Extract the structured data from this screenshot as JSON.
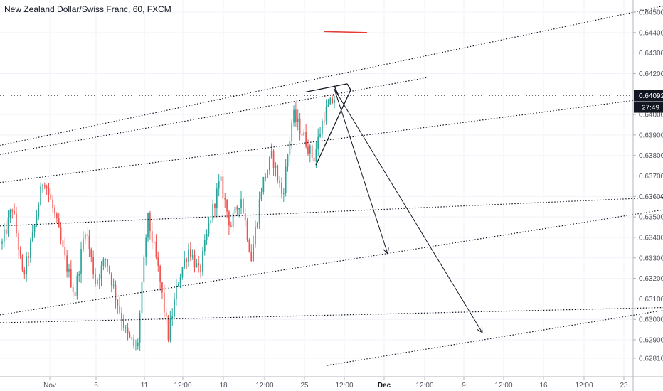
{
  "header": {
    "title": "New Zealand Dollar/Swiss Franc, 60, FXCM"
  },
  "colors": {
    "background": "#ffffff",
    "up": "#26a69a",
    "down": "#ef5350",
    "text": "#131722",
    "drawing": "#131722",
    "red_line": "#e53935"
  },
  "chart_data": {
    "type": "candlestick",
    "title": "New Zealand Dollar/Swiss Franc, 60, FXCM",
    "ylim": [
      0.6275,
      0.6455
    ],
    "y_ticks": [
      "0.64500",
      "0.64400",
      "0.64300",
      "0.64200",
      "0.64000",
      "0.63900",
      "0.63800",
      "0.63700",
      "0.63600",
      "0.63500",
      "0.63400",
      "0.63300",
      "0.63200",
      "0.63100",
      "0.63000",
      "0.62900",
      "0.62810"
    ],
    "x_ticks": [
      "Nov",
      "6",
      "11",
      "12:00",
      "18",
      "12:00",
      "25",
      "12:00",
      "Dec",
      "12:00",
      "9",
      "12:00",
      "16",
      "12:00",
      "23"
    ],
    "current_price": "0.64092",
    "countdown": "27:49",
    "anchors": [
      {
        "v": 0.6337
      },
      {
        "v": 0.6355
      },
      {
        "v": 0.632
      },
      {
        "v": 0.6342
      },
      {
        "v": 0.637
      },
      {
        "v": 0.6352
      },
      {
        "v": 0.633
      },
      {
        "v": 0.6312
      },
      {
        "v": 0.6345
      },
      {
        "v": 0.6318
      },
      {
        "v": 0.633
      },
      {
        "v": 0.631
      },
      {
        "v": 0.6292
      },
      {
        "v": 0.6285
      },
      {
        "v": 0.635
      },
      {
        "v": 0.6325
      },
      {
        "v": 0.6292
      },
      {
        "v": 0.632
      },
      {
        "v": 0.6335
      },
      {
        "v": 0.6322
      },
      {
        "v": 0.6348
      },
      {
        "v": 0.6368
      },
      {
        "v": 0.6345
      },
      {
        "v": 0.636
      },
      {
        "v": 0.633
      },
      {
        "v": 0.6365
      },
      {
        "v": 0.638
      },
      {
        "v": 0.636
      },
      {
        "v": 0.64
      },
      {
        "v": 0.639
      },
      {
        "v": 0.6378
      },
      {
        "v": 0.64
      },
      {
        "v": 0.6408
      }
    ],
    "channel_lines": [
      {
        "p1": [
          -40,
          0.6382
        ],
        "p2": [
          960,
          0.6455
        ],
        "style": "dotted"
      },
      {
        "p1": [
          -40,
          0.6378
        ],
        "p2": [
          600,
          0.6418
        ],
        "style": "dotted"
      },
      {
        "p1": [
          -40,
          0.6365
        ],
        "p2": [
          960,
          0.641
        ],
        "style": "dotted"
      },
      {
        "p1": [
          -40,
          0.6345
        ],
        "p2": [
          960,
          0.636
        ],
        "style": "dotted"
      },
      {
        "p1": [
          -40,
          0.63
        ],
        "p2": [
          960,
          0.6355
        ],
        "style": "dotted"
      },
      {
        "p1": [
          -40,
          0.6298
        ],
        "p2": [
          960,
          0.6306
        ],
        "style": "dotted"
      },
      {
        "p1": [
          460,
          0.62775
        ],
        "p2": [
          960,
          0.6306
        ],
        "style": "dotted"
      }
    ],
    "red_line": {
      "p1": [
        455,
        0.64405
      ],
      "p2": [
        516,
        0.644
      ]
    },
    "triangle": {
      "lines": [
        {
          "p1": [
            430,
            0.6411
          ],
          "p2": [
            488,
            0.6415
          ]
        },
        {
          "p1": [
            444,
            0.63753
          ],
          "p2": [
            493,
            0.6412
          ]
        },
        {
          "p1": [
            470,
            0.6414
          ],
          "p2": [
            476,
            0.6409
          ]
        }
      ]
    },
    "arrows": [
      {
        "p1": [
          470,
          0.64125
        ],
        "p2": [
          545,
          0.6332
        ]
      },
      {
        "p1": [
          470,
          0.64125
        ],
        "p2": [
          678,
          0.62935
        ]
      }
    ]
  }
}
